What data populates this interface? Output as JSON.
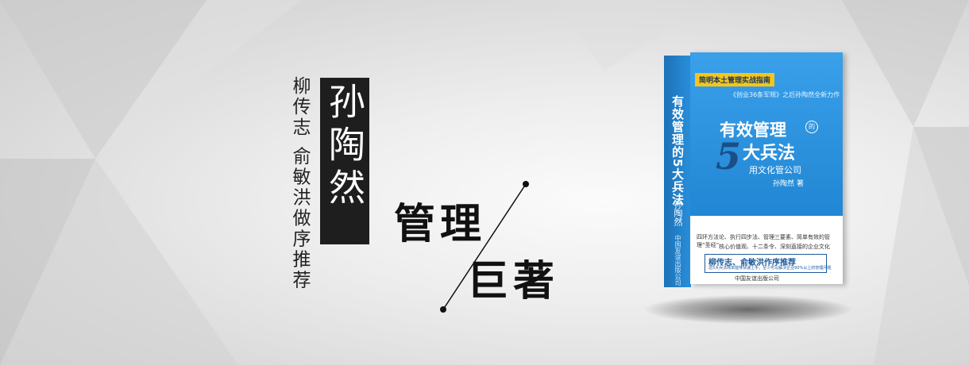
{
  "banner": {
    "author": "孙陶然",
    "recommend": "柳传志 俞敏洪做序推荐",
    "headline_line1": "管理",
    "headline_line2": "巨著"
  },
  "book": {
    "tag": "简明本土管理实战指南",
    "subtitle": "《创业36条军规》之后孙陶然全新力作",
    "title_main": "有效管理",
    "title_de": "的",
    "title_five": "5",
    "title_rest": "大兵法",
    "tagline": "用文化管公司",
    "author": "孙陶然 著",
    "desc_line1": "四环方法论、执行四步法、管理三要素、简单有效的管理“圣经”",
    "desc_line2": "核心价值观、十二条令、深刻直接的企业文化",
    "recommend_box": "柳传志、俞敏洪作序推荐",
    "recommend_small": "这5大兵法简单能够快速上手，至少可以解决企业90%以上的管理问题",
    "publisher": "中国友谊出版公司",
    "spine_title": "有效管理的5大兵法",
    "spine_author": "孙陶然",
    "spine_publisher": "中国友谊出版公司"
  },
  "colors": {
    "cover_blue": "#2a8fda",
    "tag_yellow": "#f4c51c",
    "dark_box": "#1e1e1e"
  }
}
